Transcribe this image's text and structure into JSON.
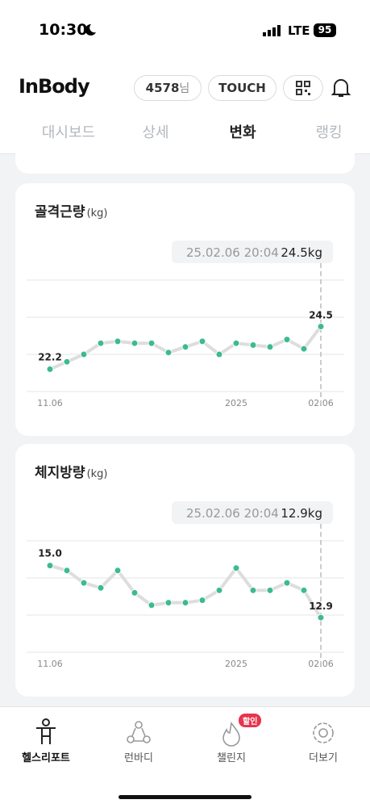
{
  "status_bar": {
    "time": "10:30",
    "network": "LTE",
    "battery": "95"
  },
  "header": {
    "logo": "InBody",
    "user_id": "4578",
    "user_suffix": "님",
    "touch_button": "TOUCH"
  },
  "tabs": [
    "대시보드",
    "상세",
    "변화",
    "랭킹"
  ],
  "active_tab": 2,
  "charts": [
    {
      "type": "line",
      "title": "골격근량",
      "unit": "(kg)",
      "tooltip_date": "25.02.06 20:04",
      "tooltip_value": "24.5kg",
      "categories": [
        "11.06",
        null,
        null,
        null,
        null,
        null,
        null,
        null,
        null,
        null,
        null,
        "2025",
        null,
        null,
        null,
        null,
        "02.06"
      ],
      "values": [
        22.2,
        22.6,
        23.0,
        23.6,
        23.7,
        23.6,
        23.6,
        23.1,
        23.4,
        23.7,
        23.0,
        23.6,
        23.5,
        23.4,
        23.8,
        23.3,
        24.5
      ],
      "value_labels": [
        "22.2",
        null,
        null,
        null,
        null,
        null,
        null,
        null,
        null,
        null,
        null,
        null,
        null,
        null,
        null,
        null,
        "24.5"
      ],
      "ylim": [
        21,
        27
      ],
      "gridlines": [
        21,
        23,
        25,
        27
      ],
      "color": "#3dbb8c",
      "line_color": "#dddddd"
    },
    {
      "type": "line",
      "title": "체지방량",
      "unit": "(kg)",
      "tooltip_date": "25.02.06 20:04",
      "tooltip_value": "12.9kg",
      "categories": [
        "11.06",
        null,
        null,
        null,
        null,
        null,
        null,
        null,
        null,
        null,
        null,
        "2025",
        null,
        null,
        null,
        null,
        "02.06"
      ],
      "values": [
        15.0,
        14.8,
        14.3,
        14.1,
        14.8,
        13.9,
        13.4,
        13.5,
        13.5,
        13.6,
        14.0,
        14.9,
        14.0,
        14.0,
        14.3,
        14.0,
        12.9
      ],
      "value_labels": [
        "15.0",
        null,
        null,
        null,
        null,
        null,
        null,
        null,
        null,
        null,
        null,
        null,
        null,
        null,
        null,
        null,
        "12.9"
      ],
      "ylim": [
        11.5,
        16
      ],
      "gridlines": [
        11.5,
        13,
        14.5,
        16
      ],
      "color": "#3dbb8c",
      "line_color": "#dddddd"
    }
  ],
  "bottom_nav": [
    "헬스리포트",
    "런바디",
    "챌린지",
    "더보기"
  ],
  "badge": "할인"
}
